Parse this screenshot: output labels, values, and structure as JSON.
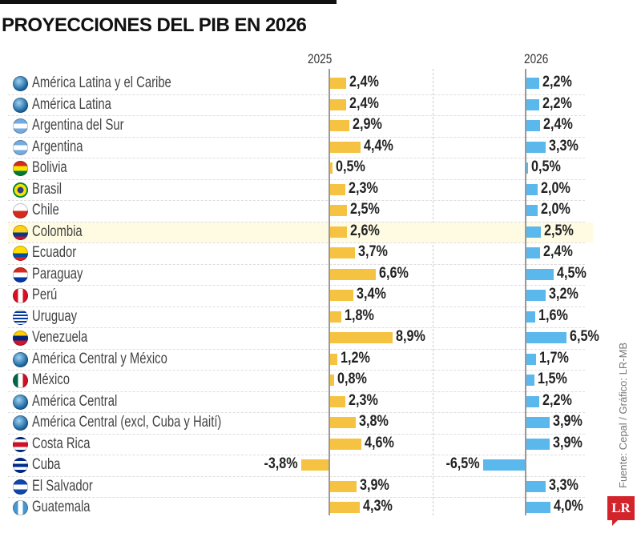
{
  "chart_data": {
    "type": "bar",
    "title": "PROYECCIONES DEL PIB EN 2026",
    "orientation": "horizontal",
    "categories": [
      "América Latina y el Caribe",
      "América Latina",
      "Argentina del Sur",
      "Argentina",
      "Bolivia",
      "Brasil",
      "Chile",
      "Colombia",
      "Ecuador",
      "Paraguay",
      "Perú",
      "Uruguay",
      "Venezuela",
      "América Central y México",
      "México",
      "América Central",
      "América Central (excl, Cuba y Haití)",
      "Costa Rica",
      "Cuba",
      "El Salvador",
      "Guatemala"
    ],
    "series": [
      {
        "name": "2025",
        "color": "#f5c242",
        "values": [
          2.4,
          2.4,
          2.9,
          4.4,
          0.5,
          2.3,
          2.5,
          2.6,
          3.7,
          6.6,
          3.4,
          1.8,
          8.9,
          1.2,
          0.8,
          2.3,
          3.8,
          4.6,
          -3.8,
          3.9,
          4.3
        ],
        "labels": [
          "2,4%",
          "2,4%",
          "2,9%",
          "4,4%",
          "0,5%",
          "2,3%",
          "2,5%",
          "2,6%",
          "3,7%",
          "6,6%",
          "3,4%",
          "1,8%",
          "8,9%",
          "1,2%",
          "0,8%",
          "2,3%",
          "3,8%",
          "4,6%",
          "-3,8%",
          "3,9%",
          "4,3%"
        ]
      },
      {
        "name": "2026",
        "color": "#5bb8ec",
        "values": [
          2.2,
          2.2,
          2.4,
          3.3,
          0.5,
          2.0,
          2.0,
          2.5,
          2.4,
          4.5,
          3.2,
          1.6,
          6.5,
          1.7,
          1.5,
          2.2,
          3.9,
          3.9,
          -6.5,
          3.3,
          4.0
        ],
        "labels": [
          "2,2%",
          "2,2%",
          "2,4%",
          "3,3%",
          "0,5%",
          "2,0%",
          "2,0%",
          "2,5%",
          "2,4%",
          "4,5%",
          "3,2%",
          "1,6%",
          "6,5%",
          "1,7%",
          "1,5%",
          "2,2%",
          "3,9%",
          "3,9%",
          "-6,5%",
          "3,3%",
          "4,0%"
        ]
      }
    ],
    "highlighted_category": "Colombia",
    "icons": [
      "globe",
      "globe",
      "argentina-flag",
      "argentina-flag",
      "bolivia-flag",
      "brazil-flag",
      "chile-flag",
      "colombia-flag",
      "ecuador-flag",
      "paraguay-flag",
      "peru-flag",
      "uruguay-flag",
      "venezuela-flag",
      "globe",
      "mexico-flag",
      "globe",
      "globe",
      "costa-rica-flag",
      "cuba-flag",
      "el-salvador-flag",
      "guatemala-flag"
    ],
    "source": "Fuente: Cepal / Gráfico: LR-MB",
    "logo": "LR"
  }
}
